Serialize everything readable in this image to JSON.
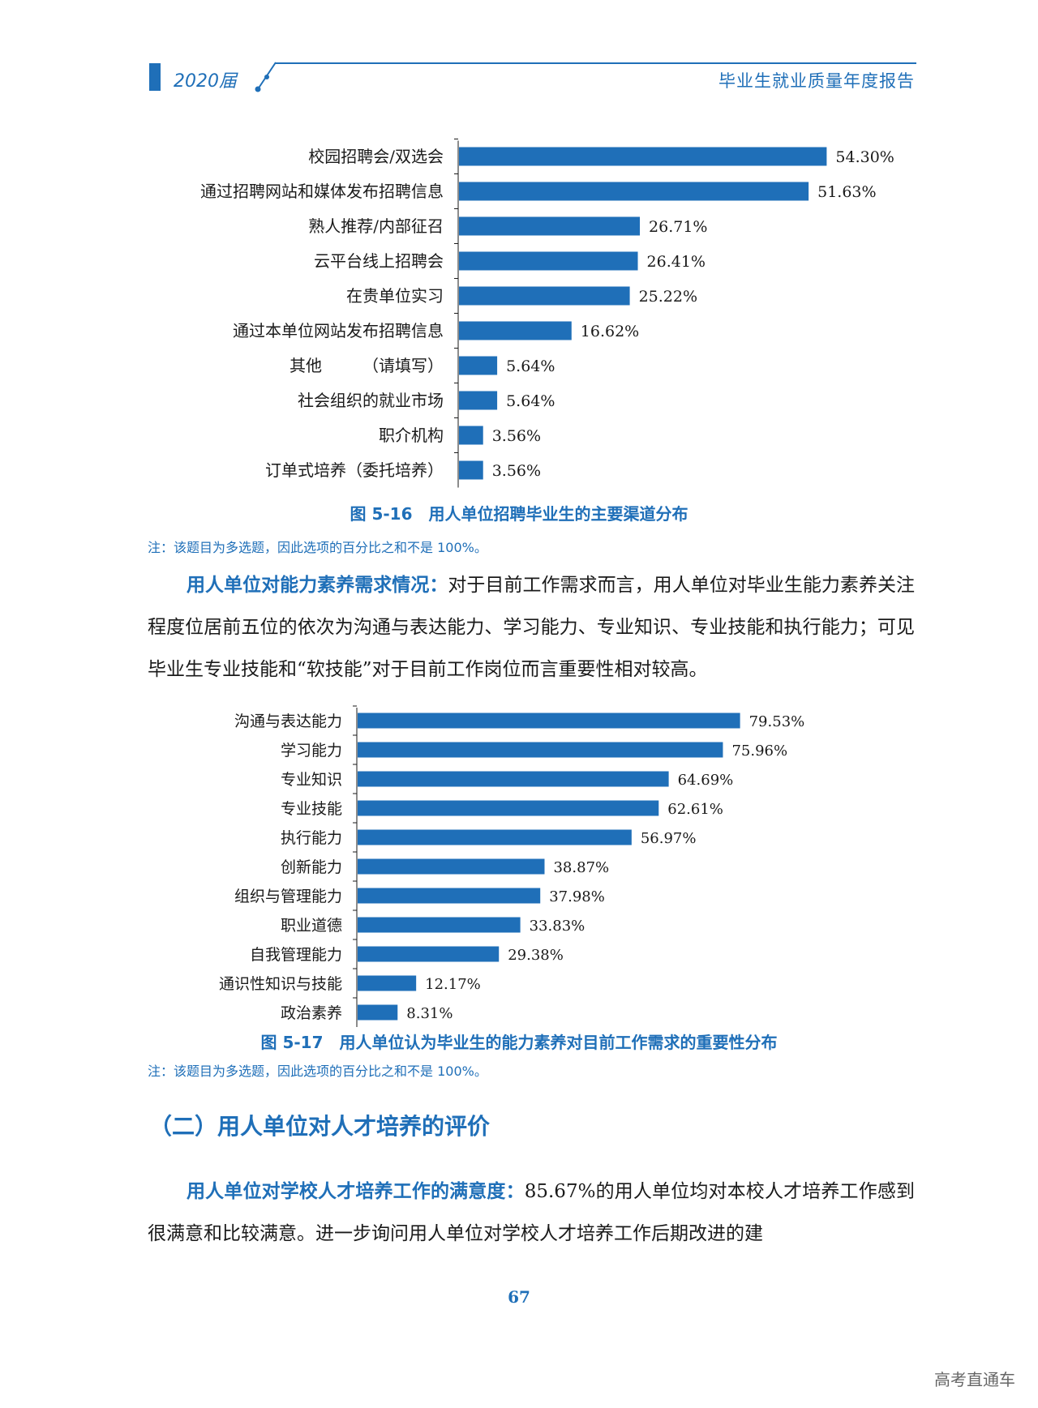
{
  "header": {
    "year_label": "2020届",
    "report_title": "毕业生就业质量年度报告"
  },
  "colors": {
    "accent": "#1f6fb8",
    "bar": "#1f6fb8"
  },
  "chart_data": [
    {
      "type": "bar",
      "orientation": "horizontal",
      "categories": [
        "校园招聘会/双选会",
        "通过招聘网站和媒体发布招聘信息",
        "熟人推荐/内部征召",
        "云平台线上招聘会",
        "在贵单位实习",
        "通过本单位网站发布招聘信息",
        "其他　　　（请填写）",
        "社会组织的就业市场",
        "职介机构",
        "订单式培养（委托培养）"
      ],
      "values": [
        54.3,
        51.63,
        26.71,
        26.41,
        25.22,
        16.62,
        5.64,
        5.64,
        3.56,
        3.56
      ],
      "value_labels": [
        "54.30%",
        "51.63%",
        "26.71%",
        "26.41%",
        "25.22%",
        "16.62%",
        "5.64%",
        "5.64%",
        "3.56%",
        "3.56%"
      ],
      "title": "图 5-16　用人单位招聘毕业生的主要渠道分布",
      "xlim": [
        0,
        100
      ]
    },
    {
      "type": "bar",
      "orientation": "horizontal",
      "categories": [
        "沟通与表达能力",
        "学习能力",
        "专业知识",
        "专业技能",
        "执行能力",
        "创新能力",
        "组织与管理能力",
        "职业道德",
        "自我管理能力",
        "通识性知识与技能",
        "政治素养"
      ],
      "values": [
        79.53,
        75.96,
        64.69,
        62.61,
        56.97,
        38.87,
        37.98,
        33.83,
        29.38,
        12.17,
        8.31
      ],
      "value_labels": [
        "79.53%",
        "75.96%",
        "64.69%",
        "62.61%",
        "56.97%",
        "38.87%",
        "37.98%",
        "33.83%",
        "29.38%",
        "12.17%",
        "8.31%"
      ],
      "title": "图 5-17　用人单位认为毕业生的能力素养对目前工作需求的重要性分布",
      "xlim": [
        0,
        100
      ]
    }
  ],
  "captions": {
    "fig16": "图 5-16　用人单位招聘毕业生的主要渠道分布",
    "fig17": "图 5-17　用人单位认为毕业生的能力素养对目前工作需求的重要性分布"
  },
  "notes": {
    "note1": "注：该题目为多选题，因此选项的百分比之和不是 100%。",
    "note2": "注：该题目为多选题，因此选项的百分比之和不是 100%。"
  },
  "paragraphs": {
    "p1_lead": "用人单位对能力素养需求情况：",
    "p1_body": "对于目前工作需求而言，用人单位对毕业生能力素养关注程度位居前五位的依次为沟通与表达能力、学习能力、专业知识、专业技能和执行能力；可见毕业生专业技能和“软技能”对于目前工作岗位而言重要性相对较高。",
    "section_title": "（二）用人单位对人才培养的评价",
    "p2_lead": "用人单位对学校人才培养工作的满意度：",
    "p2_body": "85.67%的用人单位均对本校人才培养工作感到很满意和比较满意。进一步询问用人单位对学校人才培养工作后期改进的建"
  },
  "page_number": "67",
  "watermark": "高考直通车"
}
